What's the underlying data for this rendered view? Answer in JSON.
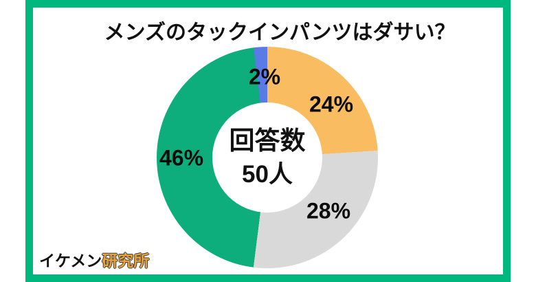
{
  "title": "メンズのタックインパンツはダサい？",
  "frame": {
    "border_color": "#00B77D",
    "background": "#ffffff"
  },
  "chart_data": {
    "type": "pie",
    "subtype": "donut",
    "title": "メンズのタックインパンツはダサい？",
    "start_angle_deg": 0,
    "direction": "clockwise-from-top",
    "legend": "none",
    "center_label": {
      "line1": "回答数",
      "line2": "50人",
      "total_responses": 50
    },
    "slices": [
      {
        "name": "orange-slice",
        "label": "24%",
        "value": 24,
        "color": "#F9BC60"
      },
      {
        "name": "gray-slice",
        "label": "28%",
        "value": 28,
        "color": "#D9D9D9"
      },
      {
        "name": "green-slice",
        "label": "46%",
        "value": 46,
        "color": "#0DAE7B"
      },
      {
        "name": "blue-slice",
        "label": "2%",
        "value": 2,
        "color": "#5A7AE6"
      }
    ]
  },
  "footer": {
    "logo_black_part": "イケメン",
    "logo_orange_part": "研究所",
    "logo_orange_color": "#E8A33C"
  }
}
